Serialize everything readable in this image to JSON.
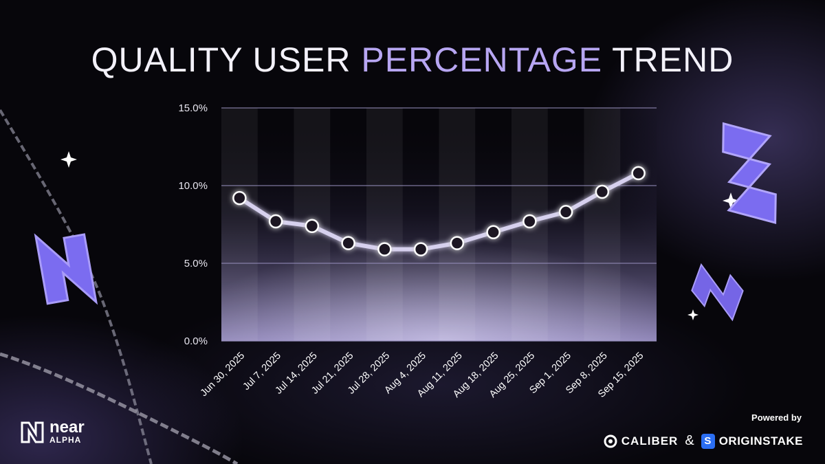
{
  "title": {
    "part1": "QUALITY USER ",
    "part2": "PERCENTAGE",
    "part3": " TREND"
  },
  "brand": {
    "word": "near",
    "sub": "ALPHA"
  },
  "footer": {
    "powered_by": "Powered by",
    "caliber": "CALIBER",
    "ampersand": "&",
    "originstake": "ORIGINSTAKE",
    "originstake_badge": "S"
  },
  "colors": {
    "accent": "#b7a6f2",
    "line": "#d6d0ee",
    "marker_fill": "#1a1820",
    "marker_stroke": "#ffffff",
    "grid": "#9a92c0",
    "brand_purple": "#7b6cf0"
  },
  "chart_data": {
    "type": "line",
    "categories": [
      "Jun 30, 2025",
      "Jul 7, 2025",
      "Jul 14, 2025",
      "Jul 21, 2025",
      "Jul 28, 2025",
      "Aug 4, 2025",
      "Aug 11, 2025",
      "Aug 18, 2025",
      "Aug 25, 2025",
      "Sep 1, 2025",
      "Sep 8, 2025",
      "Sep 15, 2025"
    ],
    "series": [
      {
        "values": [
          9.2,
          7.7,
          7.4,
          6.3,
          5.9,
          5.9,
          6.3,
          7.0,
          7.7,
          8.3,
          9.6,
          10.8
        ]
      }
    ],
    "ylim": [
      0,
      15
    ],
    "yticks": [
      0,
      5,
      10,
      15
    ],
    "ytick_labels": [
      "0.0%",
      "5.0%",
      "10.0%",
      "15.0%"
    ],
    "grid": true,
    "legend": "none"
  }
}
